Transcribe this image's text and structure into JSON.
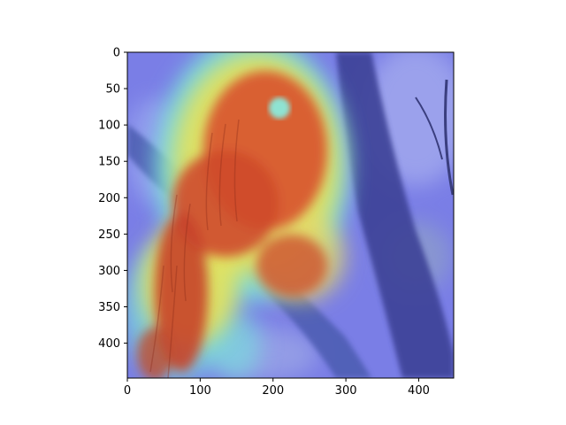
{
  "image": {
    "description_icon": "heatmap-overlay-bird-on-branch",
    "x_ticks": [
      "0",
      "100",
      "200",
      "300",
      "400"
    ],
    "y_ticks": [
      "0",
      "50",
      "100",
      "150",
      "200",
      "250",
      "300",
      "350",
      "400"
    ],
    "x_range": [
      0,
      448
    ],
    "y_range": [
      0,
      448
    ],
    "colors": {
      "axis": "#000000",
      "background_overlay_blue": "#6b6bd6",
      "hot_red": "#c8402a",
      "warm_yellow": "#e8e05a",
      "cool_cyan": "#6ee0e0"
    }
  }
}
